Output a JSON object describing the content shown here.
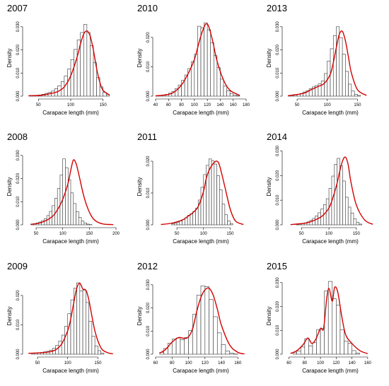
{
  "chart_data": [
    {
      "type": "bar",
      "title": "2007",
      "xlabel": "Carapace length (mm)",
      "ylabel": "Density",
      "xlim": [
        30,
        170
      ],
      "ylim": [
        0,
        0.033
      ],
      "xticks": [
        50,
        100,
        150
      ],
      "yticks": [
        0.0,
        0.01,
        0.02,
        0.03
      ],
      "ytick_labels": [
        "0.000",
        "0.010",
        "0.020",
        "0.030"
      ],
      "bin_width": 5,
      "bin_start": 35,
      "values": [
        0.0002,
        0.0003,
        0.0004,
        0.0005,
        0.0008,
        0.0012,
        0.0016,
        0.0022,
        0.0032,
        0.0045,
        0.0063,
        0.0087,
        0.0117,
        0.0158,
        0.0202,
        0.0243,
        0.0275,
        0.031,
        0.0275,
        0.0218,
        0.0145,
        0.008,
        0.004,
        0.0016,
        0.0006
      ],
      "density_x": [
        35,
        55,
        70,
        80,
        90,
        100,
        110,
        115,
        120,
        125,
        130,
        135,
        140,
        145,
        150,
        160
      ],
      "density_y": [
        0.0002,
        0.0004,
        0.0012,
        0.002,
        0.004,
        0.0088,
        0.017,
        0.0225,
        0.0268,
        0.0282,
        0.026,
        0.02,
        0.012,
        0.006,
        0.0025,
        0.0005
      ]
    },
    {
      "type": "bar",
      "title": "2010",
      "xlabel": "Carapace length (mm)",
      "ylabel": "Density",
      "xlim": [
        40,
        180
      ],
      "ylim": [
        0,
        0.026
      ],
      "xticks": [
        40,
        60,
        80,
        100,
        120,
        140,
        160,
        180
      ],
      "yticks": [
        0.0,
        0.01,
        0.02
      ],
      "ytick_labels": [
        "0.000",
        "0.010",
        "0.020"
      ],
      "bin_width": 5,
      "bin_start": 40,
      "values": [
        0.0001,
        0.0002,
        0.0004,
        0.0006,
        0.001,
        0.0016,
        0.0026,
        0.0038,
        0.0054,
        0.0072,
        0.0094,
        0.0117,
        0.0143,
        0.0238,
        0.0233,
        0.025,
        0.0226,
        0.0182,
        0.0138,
        0.0097,
        0.0058,
        0.0034,
        0.0018,
        0.0008,
        0.0004,
        0.0002
      ],
      "density_x": [
        40,
        60,
        70,
        80,
        90,
        100,
        105,
        110,
        115,
        118,
        122,
        128,
        135,
        145,
        155,
        170
      ],
      "density_y": [
        0.0001,
        0.0006,
        0.0016,
        0.0038,
        0.0075,
        0.0125,
        0.0165,
        0.0205,
        0.0235,
        0.0246,
        0.0238,
        0.019,
        0.012,
        0.0055,
        0.002,
        0.0003
      ]
    },
    {
      "type": "bar",
      "title": "2013",
      "xlabel": "Carapace length (mm)",
      "ylabel": "Density",
      "xlim": [
        30,
        180
      ],
      "ylim": [
        0,
        0.033
      ],
      "xticks": [
        50,
        100,
        150
      ],
      "yticks": [
        0.0,
        0.01,
        0.02,
        0.03
      ],
      "ytick_labels": [
        "0.000",
        "0.010",
        "0.020",
        "0.030"
      ],
      "bin_width": 5,
      "bin_start": 35,
      "values": [
        0.0002,
        0.0003,
        0.0005,
        0.0008,
        0.0012,
        0.0018,
        0.0024,
        0.0032,
        0.004,
        0.0046,
        0.0053,
        0.0066,
        0.0098,
        0.0152,
        0.0205,
        0.0262,
        0.03,
        0.0253,
        0.0181,
        0.0107,
        0.0052,
        0.0022,
        0.0008,
        0.0003
      ],
      "density_x": [
        35,
        60,
        75,
        85,
        95,
        105,
        110,
        115,
        120,
        125,
        130,
        135,
        140,
        150,
        165
      ],
      "density_y": [
        0.0002,
        0.0012,
        0.003,
        0.0042,
        0.0055,
        0.0095,
        0.0145,
        0.021,
        0.0268,
        0.028,
        0.024,
        0.017,
        0.01,
        0.0028,
        0.0003
      ]
    },
    {
      "type": "bar",
      "title": "2008",
      "xlabel": "Carapace length (mm)",
      "ylabel": "Density",
      "xlim": [
        30,
        200
      ],
      "ylim": [
        0,
        0.033
      ],
      "xticks": [
        50,
        100,
        150,
        200
      ],
      "yticks": [
        0.0,
        0.01,
        0.02,
        0.03
      ],
      "ytick_labels": [
        "0.000",
        "0.010",
        "0.020",
        "0.030"
      ],
      "bin_width": 5,
      "bin_start": 40,
      "values": [
        0.0003,
        0.0005,
        0.0008,
        0.0012,
        0.0018,
        0.0027,
        0.004,
        0.0058,
        0.0083,
        0.0115,
        0.0157,
        0.0215,
        0.0285,
        0.0247,
        0.0195,
        0.0138,
        0.0092,
        0.0057,
        0.0032,
        0.0016,
        0.0008,
        0.0003,
        0.0001
      ],
      "density_x": [
        40,
        60,
        80,
        90,
        100,
        110,
        115,
        120,
        125,
        130,
        140,
        150,
        160,
        175,
        195
      ],
      "density_y": [
        0.0002,
        0.001,
        0.0035,
        0.0065,
        0.011,
        0.018,
        0.0235,
        0.028,
        0.0265,
        0.022,
        0.012,
        0.0055,
        0.002,
        0.0004,
        0.0001
      ]
    },
    {
      "type": "bar",
      "title": "2011",
      "xlabel": "Carapace length (mm)",
      "ylabel": "Density",
      "xlim": [
        10,
        180
      ],
      "ylim": [
        0,
        0.024
      ],
      "xticks": [
        50,
        100,
        150
      ],
      "yticks": [
        0.0,
        0.01,
        0.02
      ],
      "ytick_labels": [
        "0.000",
        "0.010",
        "0.020"
      ],
      "bin_width": 5,
      "bin_start": 40,
      "values": [
        0.0003,
        0.0005,
        0.0008,
        0.0012,
        0.0017,
        0.0022,
        0.003,
        0.0035,
        0.0042,
        0.0052,
        0.0078,
        0.0118,
        0.0158,
        0.0187,
        0.0207,
        0.0201,
        0.0191,
        0.0155,
        0.011,
        0.0065,
        0.0032,
        0.0012,
        0.0004
      ],
      "density_x": [
        20,
        40,
        60,
        70,
        80,
        90,
        100,
        105,
        110,
        115,
        120,
        125,
        130,
        140,
        150,
        160,
        175
      ],
      "density_y": [
        0.0001,
        0.0005,
        0.0015,
        0.0026,
        0.0038,
        0.0058,
        0.0105,
        0.0145,
        0.017,
        0.0185,
        0.0196,
        0.02,
        0.0187,
        0.012,
        0.005,
        0.0012,
        0.0001
      ]
    },
    {
      "type": "bar",
      "title": "2014",
      "xlabel": "Carapace length (mm)",
      "ylabel": "Density",
      "xlim": [
        20,
        185
      ],
      "ylim": [
        0,
        0.031
      ],
      "xticks": [
        50,
        100,
        150
      ],
      "yticks": [
        0.0,
        0.01,
        0.02,
        0.03
      ],
      "ytick_labels": [
        "0.000",
        "0.010",
        "0.020",
        "0.030"
      ],
      "bin_width": 5,
      "bin_start": 40,
      "values": [
        0.0002,
        0.0003,
        0.0005,
        0.0008,
        0.0012,
        0.0018,
        0.0026,
        0.0036,
        0.0049,
        0.0064,
        0.0082,
        0.0106,
        0.0148,
        0.0198,
        0.0246,
        0.027,
        0.024,
        0.0178,
        0.0112,
        0.0072,
        0.0048,
        0.0024,
        0.001,
        0.0003
      ],
      "density_x": [
        30,
        60,
        80,
        90,
        100,
        105,
        110,
        115,
        120,
        125,
        130,
        135,
        140,
        150,
        165,
        180
      ],
      "density_y": [
        0.0001,
        0.0008,
        0.0025,
        0.004,
        0.0068,
        0.0095,
        0.013,
        0.017,
        0.022,
        0.026,
        0.0275,
        0.0245,
        0.0175,
        0.008,
        0.002,
        0.0002
      ]
    },
    {
      "type": "bar",
      "title": "2009",
      "xlabel": "Carapace length (mm)",
      "ylabel": "Density",
      "xlim": [
        30,
        180
      ],
      "ylim": [
        0,
        0.026
      ],
      "xticks": [
        50,
        100,
        150
      ],
      "yticks": [
        0.0,
        0.01,
        0.02
      ],
      "ytick_labels": [
        "0.000",
        "0.010",
        "0.020"
      ],
      "bin_width": 5,
      "bin_start": 40,
      "values": [
        0.0003,
        0.0004,
        0.0005,
        0.0006,
        0.0008,
        0.001,
        0.0014,
        0.002,
        0.003,
        0.0045,
        0.0065,
        0.0095,
        0.0138,
        0.0185,
        0.0225,
        0.0243,
        0.0215,
        0.0218,
        0.0176,
        0.0112,
        0.0061,
        0.0028,
        0.0012,
        0.0004
      ],
      "density_x": [
        35,
        55,
        70,
        80,
        90,
        100,
        105,
        110,
        115,
        120,
        125,
        130,
        135,
        145,
        155,
        165,
        175
      ],
      "density_y": [
        0.0003,
        0.0005,
        0.0008,
        0.0015,
        0.0035,
        0.008,
        0.012,
        0.0175,
        0.0225,
        0.0242,
        0.0222,
        0.0218,
        0.0185,
        0.008,
        0.0022,
        0.0006,
        0.0001
      ]
    },
    {
      "type": "bar",
      "title": "2012",
      "xlabel": "Carapace length (mm)",
      "ylabel": "Density",
      "xlim": [
        60,
        170
      ],
      "ylim": [
        0,
        0.033
      ],
      "xticks": [
        60,
        80,
        100,
        120,
        140,
        160
      ],
      "yticks": [
        0.0,
        0.01,
        0.02,
        0.03
      ],
      "ytick_labels": [
        "0.000",
        "0.010",
        "0.020",
        "0.030"
      ],
      "bin_width": 5,
      "bin_start": 65,
      "values": [
        0.0008,
        0.0025,
        0.0048,
        0.0065,
        0.007,
        0.0063,
        0.0072,
        0.0102,
        0.0172,
        0.0255,
        0.0295,
        0.0292,
        0.0236,
        0.0162,
        0.0092,
        0.0041,
        0.0014,
        0.0004,
        0.0001
      ],
      "density_x": [
        65,
        72,
        80,
        88,
        95,
        100,
        105,
        110,
        115,
        120,
        125,
        130,
        135,
        140,
        150,
        160,
        168
      ],
      "density_y": [
        0.0005,
        0.002,
        0.0052,
        0.0072,
        0.0068,
        0.0075,
        0.011,
        0.0185,
        0.0245,
        0.0278,
        0.0285,
        0.0255,
        0.0195,
        0.0125,
        0.004,
        0.0008,
        0.0001
      ]
    },
    {
      "type": "bar",
      "title": "2015",
      "xlabel": "Carapace length (mm)",
      "ylabel": "Density",
      "xlim": [
        55,
        170
      ],
      "ylim": [
        0,
        0.032
      ],
      "xticks": [
        60,
        80,
        100,
        120,
        140,
        160
      ],
      "yticks": [
        0.0,
        0.01,
        0.02,
        0.03
      ],
      "ytick_labels": [
        "0.000",
        "0.010",
        "0.020",
        "0.030"
      ],
      "bin_width": 5,
      "bin_start": 65,
      "values": [
        0.0006,
        0.0013,
        0.003,
        0.0065,
        0.0035,
        0.0048,
        0.0102,
        0.0108,
        0.0265,
        0.0305,
        0.0232,
        0.0205,
        0.0102,
        0.0055,
        0.0045,
        0.0015,
        0.0004
      ],
      "density_x": [
        62,
        70,
        78,
        84,
        89,
        94,
        100,
        104,
        108,
        111,
        115,
        118,
        122,
        127,
        132,
        140,
        150,
        160
      ],
      "density_y": [
        0.0003,
        0.0015,
        0.004,
        0.0068,
        0.0045,
        0.0062,
        0.0108,
        0.0108,
        0.0235,
        0.0275,
        0.0222,
        0.028,
        0.026,
        0.016,
        0.0082,
        0.0045,
        0.0015,
        0.0002
      ]
    }
  ]
}
